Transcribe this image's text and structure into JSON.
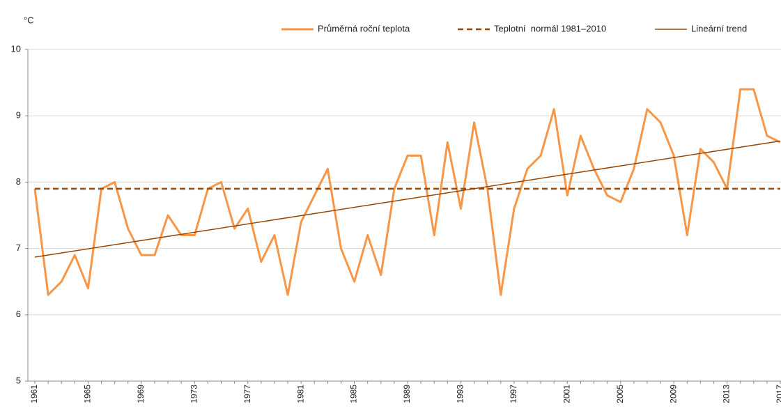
{
  "chart_data": {
    "type": "line",
    "y_label": "°C",
    "categories": [
      "1961",
      null,
      null,
      null,
      "1965",
      null,
      null,
      null,
      "1969",
      null,
      null,
      null,
      "1973",
      null,
      null,
      null,
      "1977",
      null,
      null,
      null,
      "1981",
      null,
      null,
      null,
      "1985",
      null,
      null,
      null,
      "1989",
      null,
      null,
      null,
      "1993",
      null,
      null,
      null,
      "1997",
      null,
      null,
      null,
      "2001",
      null,
      null,
      null,
      "2005",
      null,
      null,
      null,
      "2009",
      null,
      null,
      null,
      "2013",
      null,
      null,
      null,
      "2017"
    ],
    "series": [
      {
        "name": "Průměrná roční teplota",
        "color": "#f79646",
        "values": [
          7.9,
          6.3,
          6.5,
          6.9,
          6.4,
          7.9,
          8.0,
          7.3,
          6.9,
          6.9,
          7.5,
          7.2,
          7.2,
          7.9,
          8.0,
          7.3,
          7.6,
          6.8,
          7.2,
          6.3,
          7.4,
          7.8,
          8.2,
          7.0,
          6.5,
          7.2,
          6.6,
          7.9,
          8.4,
          8.4,
          7.2,
          8.6,
          7.6,
          8.9,
          7.9,
          6.3,
          7.6,
          8.2,
          8.4,
          9.1,
          7.8,
          8.7,
          8.2,
          7.8,
          7.7,
          8.2,
          9.1,
          8.9,
          8.4,
          7.2,
          8.5,
          8.3,
          7.9,
          9.4,
          9.4,
          8.7,
          8.6
        ]
      },
      {
        "name": "Teplotní  normál 1981–2010",
        "color": "#974706",
        "dashed": true,
        "level": 7.9
      },
      {
        "name": "Lineární trend",
        "color": "#984807",
        "endpoints": [
          6.87,
          8.62
        ]
      }
    ],
    "ylim": [
      5,
      10
    ],
    "yticks": [
      5,
      6,
      7,
      8,
      9,
      10
    ],
    "grid": true
  }
}
